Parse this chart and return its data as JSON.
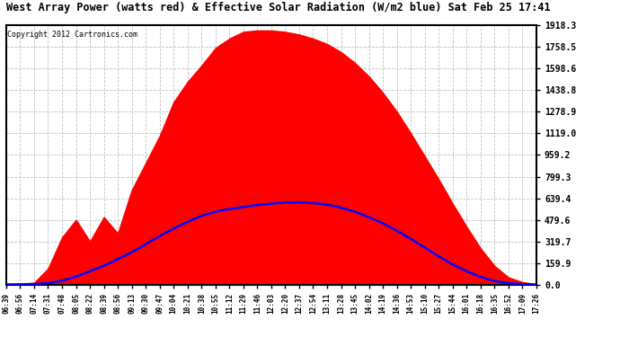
{
  "title": "West Array Power (watts red) & Effective Solar Radiation (W/m2 blue) Sat Feb 25 17:41",
  "copyright": "Copyright 2012 Cartronics.com",
  "y_ticks": [
    0.0,
    159.9,
    319.7,
    479.6,
    639.4,
    799.3,
    959.2,
    1119.0,
    1278.9,
    1438.8,
    1598.6,
    1758.5,
    1918.3
  ],
  "y_max": 1918.3,
  "x_labels": [
    "06:39",
    "06:56",
    "07:14",
    "07:31",
    "07:48",
    "08:05",
    "08:22",
    "08:39",
    "08:56",
    "09:13",
    "09:30",
    "09:47",
    "10:04",
    "10:21",
    "10:38",
    "10:55",
    "11:12",
    "11:29",
    "11:46",
    "12:03",
    "12:20",
    "12:37",
    "12:54",
    "13:11",
    "13:28",
    "13:45",
    "14:02",
    "14:19",
    "14:36",
    "14:53",
    "15:10",
    "15:27",
    "15:44",
    "16:01",
    "16:18",
    "16:35",
    "16:52",
    "17:09",
    "17:26"
  ],
  "bg_color": "#ffffff",
  "plot_bg": "#ffffff",
  "grid_color": "#bbbbbb",
  "red_fill_color": "#ff0000",
  "blue_line_color": "#0000ff",
  "border_color": "#000000",
  "red_data": [
    5,
    8,
    15,
    120,
    350,
    480,
    320,
    500,
    380,
    700,
    900,
    1100,
    1350,
    1500,
    1620,
    1750,
    1820,
    1870,
    1880,
    1880,
    1870,
    1850,
    1820,
    1780,
    1720,
    1640,
    1540,
    1420,
    1280,
    1120,
    950,
    780,
    600,
    430,
    270,
    140,
    55,
    20,
    5
  ],
  "blue_data": [
    2,
    3,
    5,
    12,
    30,
    60,
    100,
    140,
    190,
    240,
    300,
    360,
    415,
    465,
    510,
    540,
    560,
    575,
    590,
    600,
    608,
    610,
    605,
    592,
    570,
    540,
    500,
    455,
    400,
    340,
    275,
    210,
    150,
    100,
    58,
    28,
    12,
    5,
    1
  ]
}
